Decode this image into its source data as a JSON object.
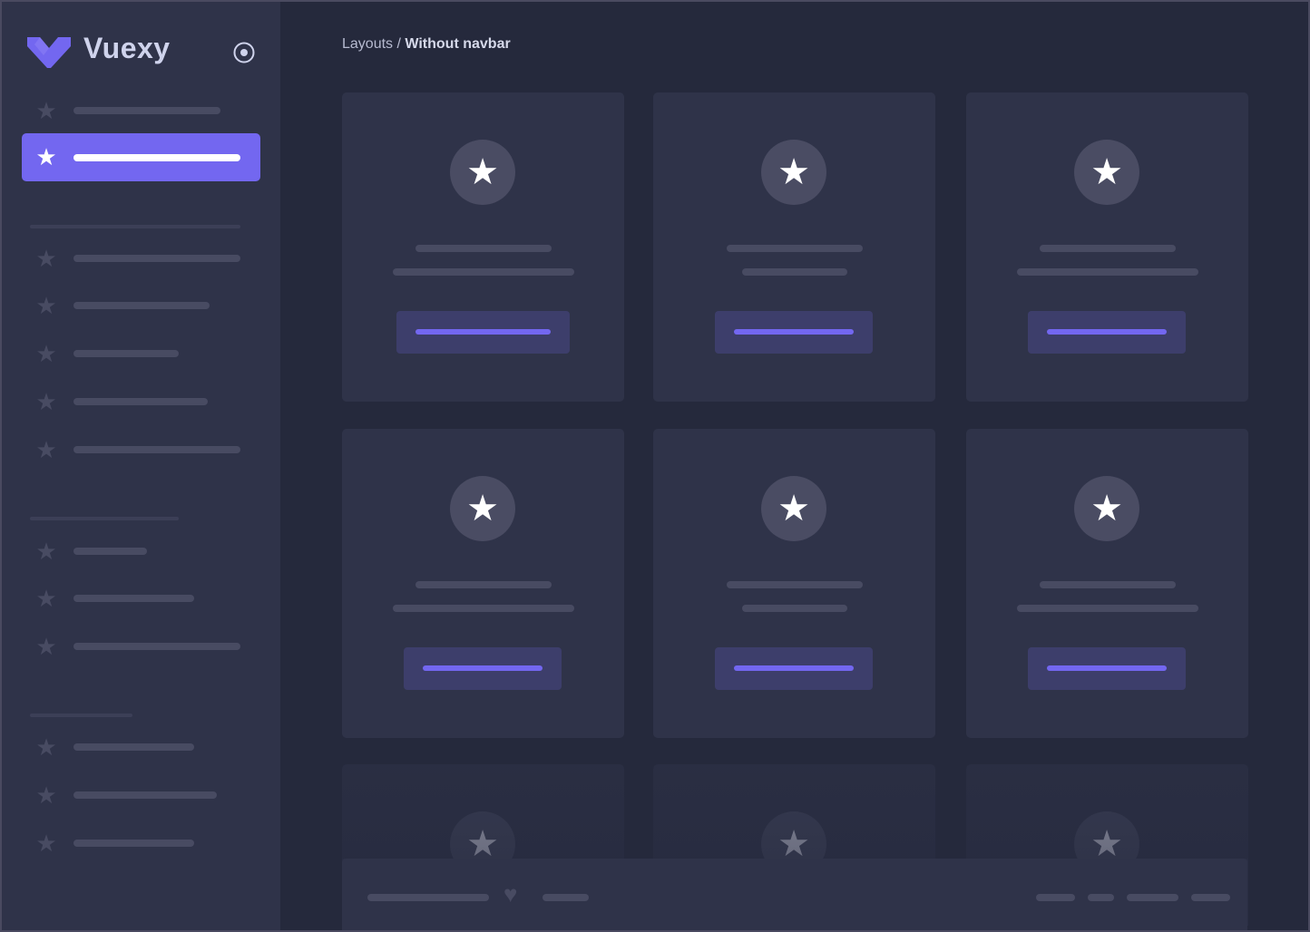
{
  "brand": {
    "name": "Vuexy",
    "logo_icon": "vuexy-logo",
    "toggle_icon": "radio-circle-icon"
  },
  "breadcrumb": {
    "parent": "Layouts",
    "separator": " / ",
    "current": "Without navbar"
  },
  "colors": {
    "accent": "#7367f0",
    "sidebar": "#2f3349",
    "background": "#25293c",
    "card": "#2f3349",
    "placeholder": "#484b62"
  },
  "icons": {
    "menu_item": "star-icon",
    "card": "star-icon",
    "footer": "heart-icon"
  }
}
